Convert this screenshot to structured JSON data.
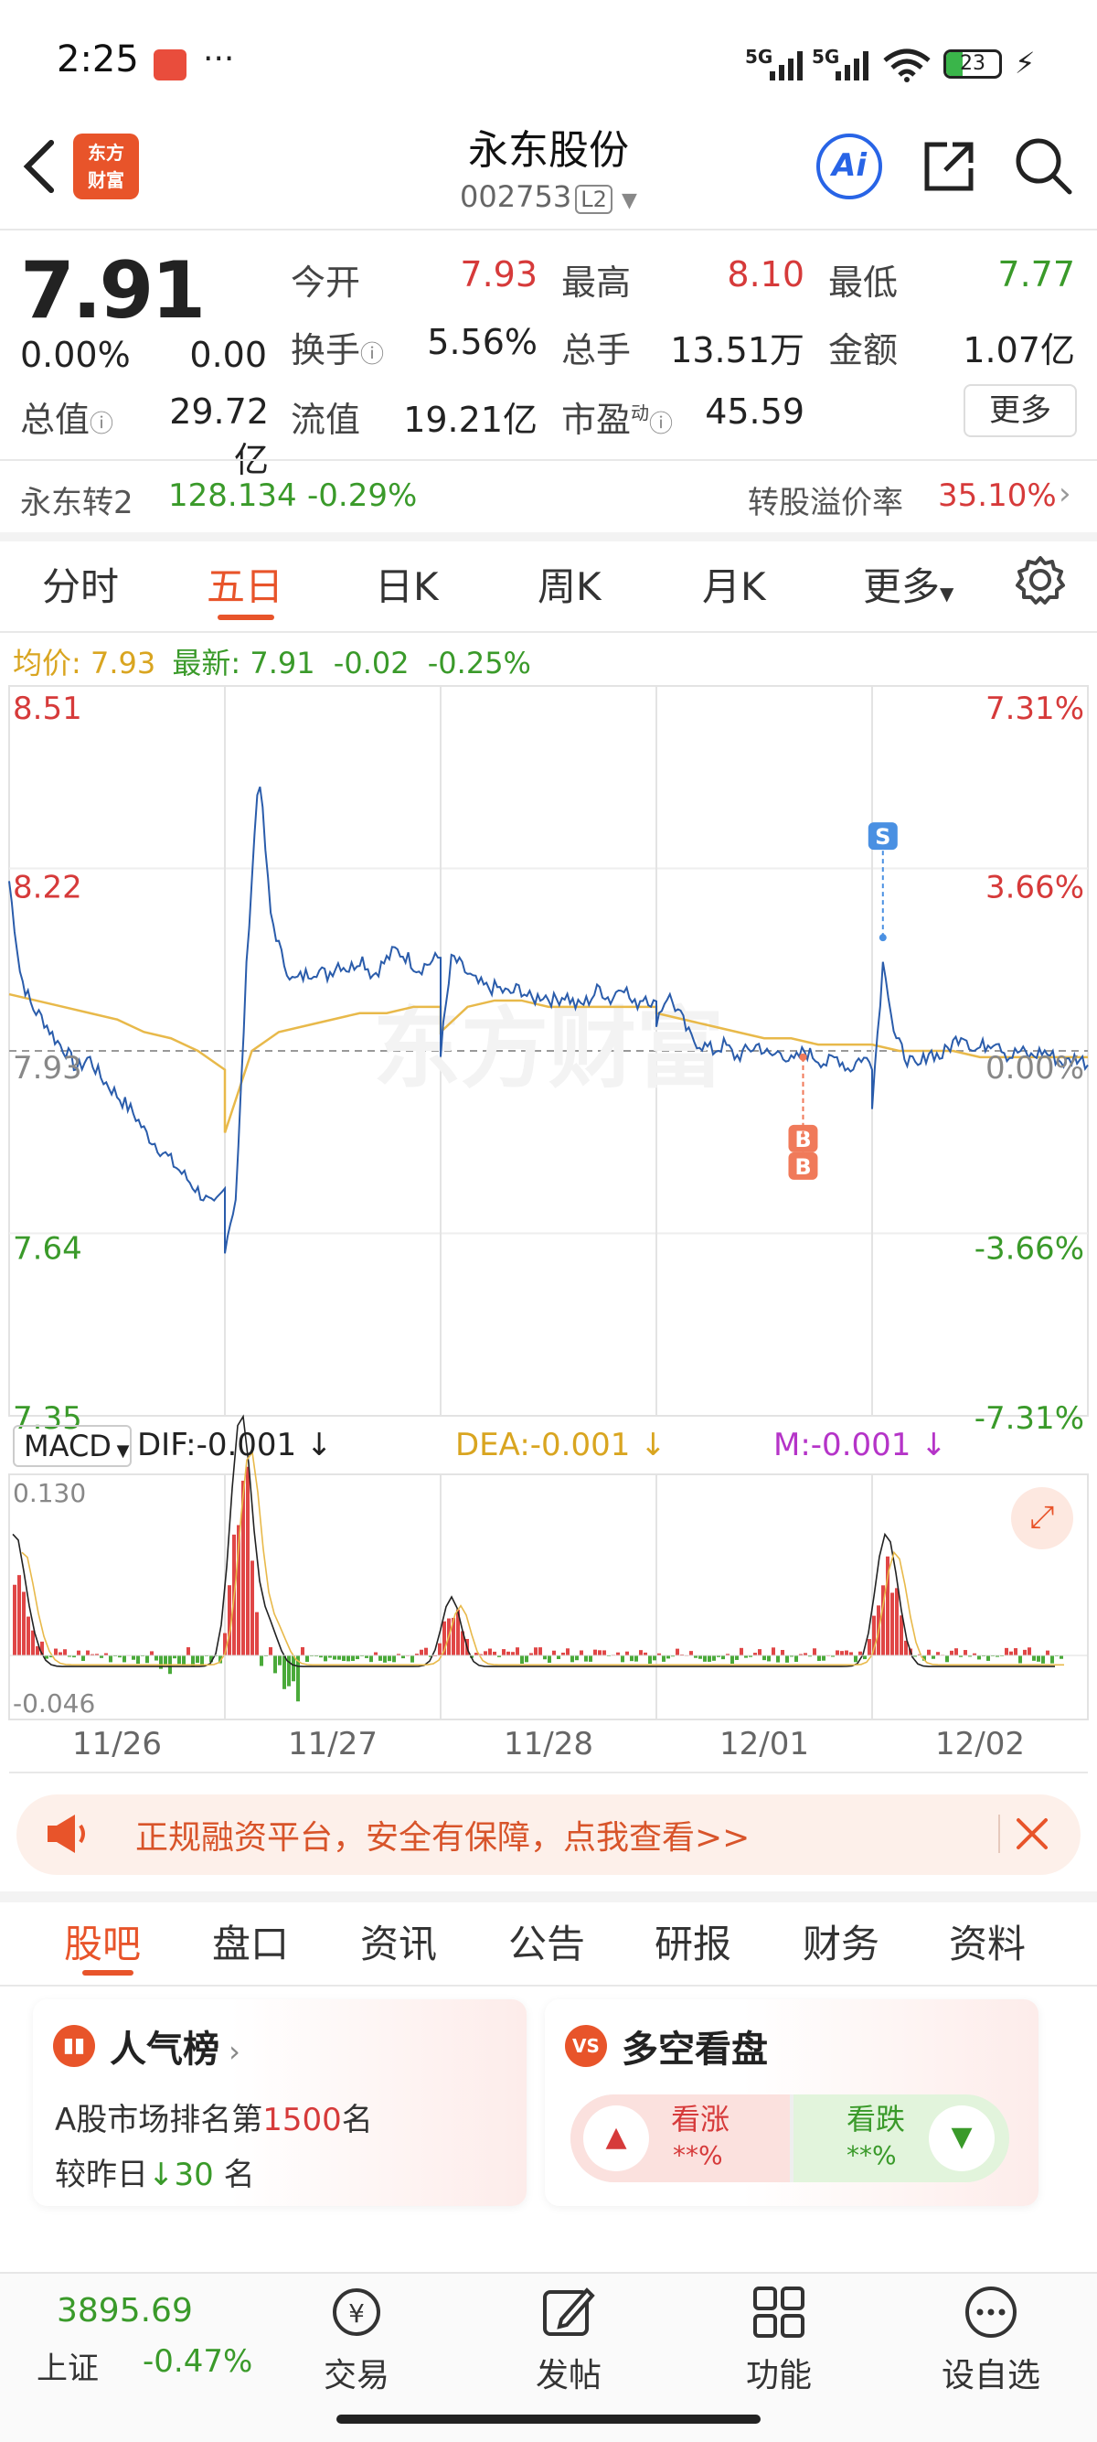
{
  "status_bar": {
    "time": "2:25",
    "signal1": "5G",
    "signal2": "5G",
    "battery": "23"
  },
  "header": {
    "logo_line1": "东方",
    "logo_line2": "财富",
    "title": "永东股份",
    "code": "002753",
    "level": "L2",
    "ai_label": "Ai"
  },
  "quote": {
    "price": "7.91",
    "change_pct": "0.00%",
    "change": "0.00",
    "open_label": "今开",
    "open": "7.93",
    "high_label": "最高",
    "high": "8.10",
    "low_label": "最低",
    "low": "7.77",
    "turnover_label": "换手",
    "turnover": "5.56%",
    "volume_label": "总手",
    "volume": "13.51万",
    "amount_label": "金额",
    "amount": "1.07亿",
    "mktcap_label": "总值",
    "mktcap": "29.72亿",
    "float_label": "流值",
    "float": "19.21亿",
    "pe_label": "市盈",
    "pe_sup": "动",
    "pe": "45.59",
    "more_label": "更多"
  },
  "bond": {
    "name": "永东转2",
    "price": "128.134",
    "change": "-0.29%",
    "premium_label": "转股溢价率",
    "premium": "35.10%"
  },
  "period_tabs": [
    "分时",
    "五日",
    "日K",
    "周K",
    "月K",
    "更多"
  ],
  "active_period": 1,
  "legend": {
    "avg_label": "均价:",
    "avg": "7.93",
    "latest_label": "最新:",
    "latest": "7.91",
    "chg": "-0.02",
    "chg_pct": "-0.25%"
  },
  "macd": {
    "selector": "MACD",
    "dif": "DIF:-0.001",
    "dea": "DEA:-0.001",
    "m": "M:-0.001",
    "top_label": "0.130",
    "bottom_label": "-0.046"
  },
  "chart_data": {
    "type": "line",
    "y_labels_left": [
      "8.51",
      "8.22",
      "7.93",
      "7.64",
      "7.35"
    ],
    "y_labels_right": [
      "7.31%",
      "3.66%",
      "0.00%",
      "-3.66%",
      "-7.31%"
    ],
    "ylim": [
      7.35,
      8.51
    ],
    "base": 7.93,
    "days": [
      "11/26",
      "11/27",
      "11/28",
      "12/01",
      "12/02"
    ],
    "markers": [
      {
        "label": "S",
        "day": 4,
        "fraction": 0.05,
        "price": 8.11
      },
      {
        "label": "B",
        "day": 3,
        "fraction": 0.68,
        "price": 7.92
      },
      {
        "label": "B",
        "day": 3,
        "fraction": 0.68,
        "price": 7.92
      }
    ],
    "price_series": [
      [
        8.2,
        8.05,
        8.0,
        7.98,
        7.95,
        7.93,
        7.9,
        7.92,
        7.89,
        7.87,
        7.85,
        7.83,
        7.8,
        7.78,
        7.76,
        7.74,
        7.72,
        7.7,
        7.68,
        7.71
      ],
      [
        7.62,
        7.7,
        8.1,
        8.38,
        8.15,
        8.08,
        8.04,
        8.05,
        8.06,
        8.05,
        8.07,
        8.06,
        8.08,
        8.05,
        8.07,
        8.09,
        8.08,
        8.06,
        8.07,
        8.08
      ],
      [
        7.93,
        8.08,
        8.06,
        8.04,
        8.03,
        8.03,
        8.02,
        8.03,
        8.01,
        8.02,
        8.01,
        8.02,
        8.0,
        8.01,
        8.03,
        8.01,
        8.04,
        8.0,
        8.02,
        8.0
      ],
      [
        7.98,
        8.02,
        7.99,
        7.95,
        7.94,
        7.93,
        7.94,
        7.92,
        7.93,
        7.94,
        7.92,
        7.93,
        7.91,
        7.93,
        7.92,
        7.91,
        7.92,
        7.9,
        7.92,
        7.91
      ],
      [
        7.85,
        8.08,
        7.95,
        7.92,
        7.9,
        7.93,
        7.92,
        7.94,
        7.96,
        7.93,
        7.94,
        7.95,
        7.92,
        7.93,
        7.92,
        7.93,
        7.92,
        7.91,
        7.92,
        7.91
      ]
    ],
    "avg_series": [
      [
        8.02,
        8.01,
        8.0,
        7.99,
        7.98,
        7.96,
        7.95,
        7.93,
        7.9
      ],
      [
        7.8,
        7.93,
        7.96,
        7.97,
        7.98,
        7.99,
        7.99,
        8.0,
        8.0
      ],
      [
        7.96,
        8.0,
        8.01,
        8.01,
        8.0,
        8.0,
        8.0,
        8.0,
        8.0
      ],
      [
        7.99,
        7.98,
        7.97,
        7.96,
        7.95,
        7.95,
        7.94,
        7.94,
        7.94
      ],
      [
        7.94,
        7.93,
        7.93,
        7.93,
        7.92,
        7.92,
        7.92,
        7.92,
        7.92
      ]
    ],
    "macd_range": [
      -0.046,
      0.13
    ]
  },
  "banner": {
    "text": "正规融资平台，安全有保障，点我查看>>"
  },
  "content_tabs": [
    "股吧",
    "盘口",
    "资讯",
    "公告",
    "研报",
    "财务",
    "资料"
  ],
  "active_content_tab": 0,
  "popularity": {
    "title": "人气榜",
    "rank_prefix": "A股市场排名第",
    "rank": "1500",
    "rank_suffix": "名",
    "change_prefix": "较昨日",
    "change": "30",
    "change_suffix": "名"
  },
  "sentiment": {
    "badge": "VS",
    "title": "多空看盘",
    "bull_label": "看涨",
    "bull_value": "**%",
    "bear_label": "看跌",
    "bear_value": "**%"
  },
  "bottom_nav": {
    "index_value": "3895.69",
    "index_name": "上证",
    "index_change": "-0.47%",
    "items": [
      "交易",
      "发帖",
      "功能",
      "设自选"
    ]
  }
}
